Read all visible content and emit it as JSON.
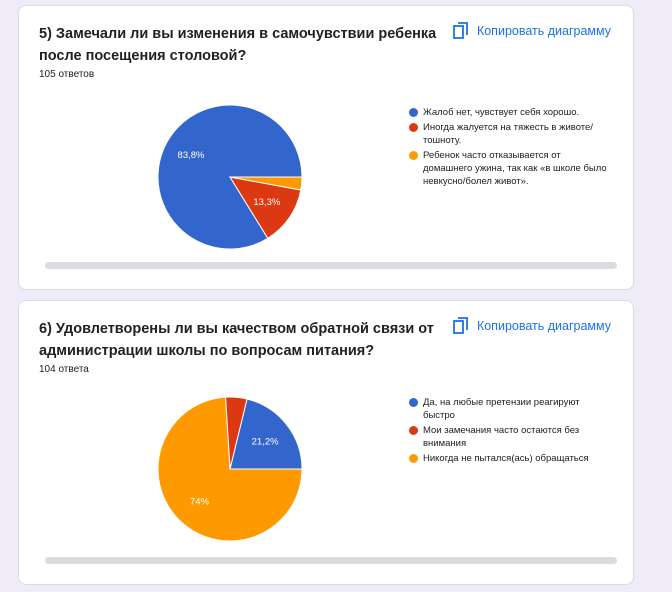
{
  "copy_label": "Копировать диаграмму",
  "colors": {
    "blue": "#3366cc",
    "red": "#dc3912",
    "orange": "#ff9900"
  },
  "chart_data": [
    {
      "type": "pie",
      "title": "5) Замечали ли вы изменения в самочувствии ребенка после посещения столовой?",
      "responses": "105 ответов",
      "slices": [
        {
          "label": "Жалоб нет, чувствует себя хорошо.",
          "value": 83.8,
          "display": "83,8%",
          "color": "#3366cc"
        },
        {
          "label": "Иногда жалуется на тяжесть в животе/тошноту.",
          "value": 13.3,
          "display": "13,3%",
          "color": "#dc3912"
        },
        {
          "label": "Ребенок часто отказывается от домашнего ужина, так как «в школе было невкусно/болел живот».",
          "value": 2.9,
          "display": "",
          "color": "#ff9900"
        }
      ]
    },
    {
      "type": "pie",
      "title": "6) Удовлетворены ли вы качеством обратной связи от администрации школы по вопросам питания?",
      "responses": "104 ответа",
      "slices": [
        {
          "label": "Да, на любые претензии реагируют быстро",
          "value": 21.2,
          "display": "21,2%",
          "color": "#3366cc"
        },
        {
          "label": "Мои замечания часто остаются без внимания",
          "value": 4.8,
          "display": "",
          "color": "#dc3912"
        },
        {
          "label": "Никогда не пытался(ась) обращаться",
          "value": 74.0,
          "display": "74%",
          "color": "#ff9900"
        }
      ]
    }
  ]
}
